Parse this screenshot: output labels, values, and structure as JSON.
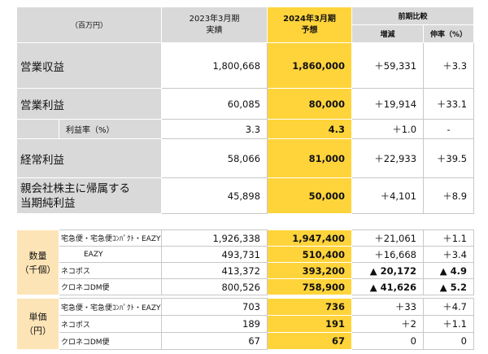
{
  "header": {
    "unit": "（百万円）",
    "prev_year": "2023年3月期",
    "prev_kind": "実績",
    "cur_year": "2024年3月期",
    "cur_kind": "予想",
    "comparison": "前期比較",
    "diff": "増減",
    "rate": "伸率（%）"
  },
  "pl_rows": [
    {
      "label": "営業収益",
      "prev": "1,800,668",
      "cur": "1,860,000",
      "diff": "＋59,331",
      "rate": "＋3.3"
    },
    {
      "label": "営業利益",
      "prev": "60,085",
      "cur": "80,000",
      "diff": "＋19,914",
      "rate": "＋33.1"
    },
    {
      "label": "利益率（%）",
      "prev": "3.3",
      "cur": "4.3",
      "diff": "＋1.0",
      "rate": "-"
    },
    {
      "label": "経常利益",
      "prev": "58,066",
      "cur": "81,000",
      "diff": "＋22,933",
      "rate": "＋39.5"
    },
    {
      "label": "親会社株主に帰属する当期純利益",
      "label_line1": "親会社株主に帰属する",
      "label_line2": "当期純利益",
      "prev": "45,898",
      "cur": "50,000",
      "diff": "＋4,101",
      "rate": "＋8.9"
    }
  ],
  "volume": {
    "group_line1": "数量",
    "group_line2": "（千個）",
    "rows": [
      {
        "label": "宅急便・宅急便ｺﾝﾊﾟｸﾄ・EAZY",
        "prev": "1,926,338",
        "cur": "1,947,400",
        "diff": "＋21,061",
        "rate": "＋1.1"
      },
      {
        "label": "EAZY",
        "prev": "493,731",
        "cur": "510,400",
        "diff": "＋16,668",
        "rate": "＋3.4"
      },
      {
        "label": "ネコポス",
        "prev": "413,372",
        "cur": "393,200",
        "diff": "▲ 20,172",
        "rate": "▲ 4.9"
      },
      {
        "label": "クロネコDM便",
        "prev": "800,526",
        "cur": "758,900",
        "diff": "▲ 41,626",
        "rate": "▲ 5.2"
      }
    ]
  },
  "price": {
    "group_line1": "単価",
    "group_line2": "（円）",
    "rows": [
      {
        "label": "宅急便・宅急便ｺﾝﾊﾟｸﾄ・EAZY",
        "prev": "703",
        "cur": "736",
        "diff": "＋33",
        "rate": "＋4.7"
      },
      {
        "label": "ネコポス",
        "prev": "189",
        "cur": "191",
        "diff": "＋2",
        "rate": "＋1.1"
      },
      {
        "label": "クロネコDM便",
        "prev": "67",
        "cur": "67",
        "diff": "0",
        "rate": "0"
      }
    ]
  },
  "colors": {
    "accent": "#ffd43b",
    "group_bg": "#fce4b6",
    "header_bg": "#d9d9d9"
  }
}
